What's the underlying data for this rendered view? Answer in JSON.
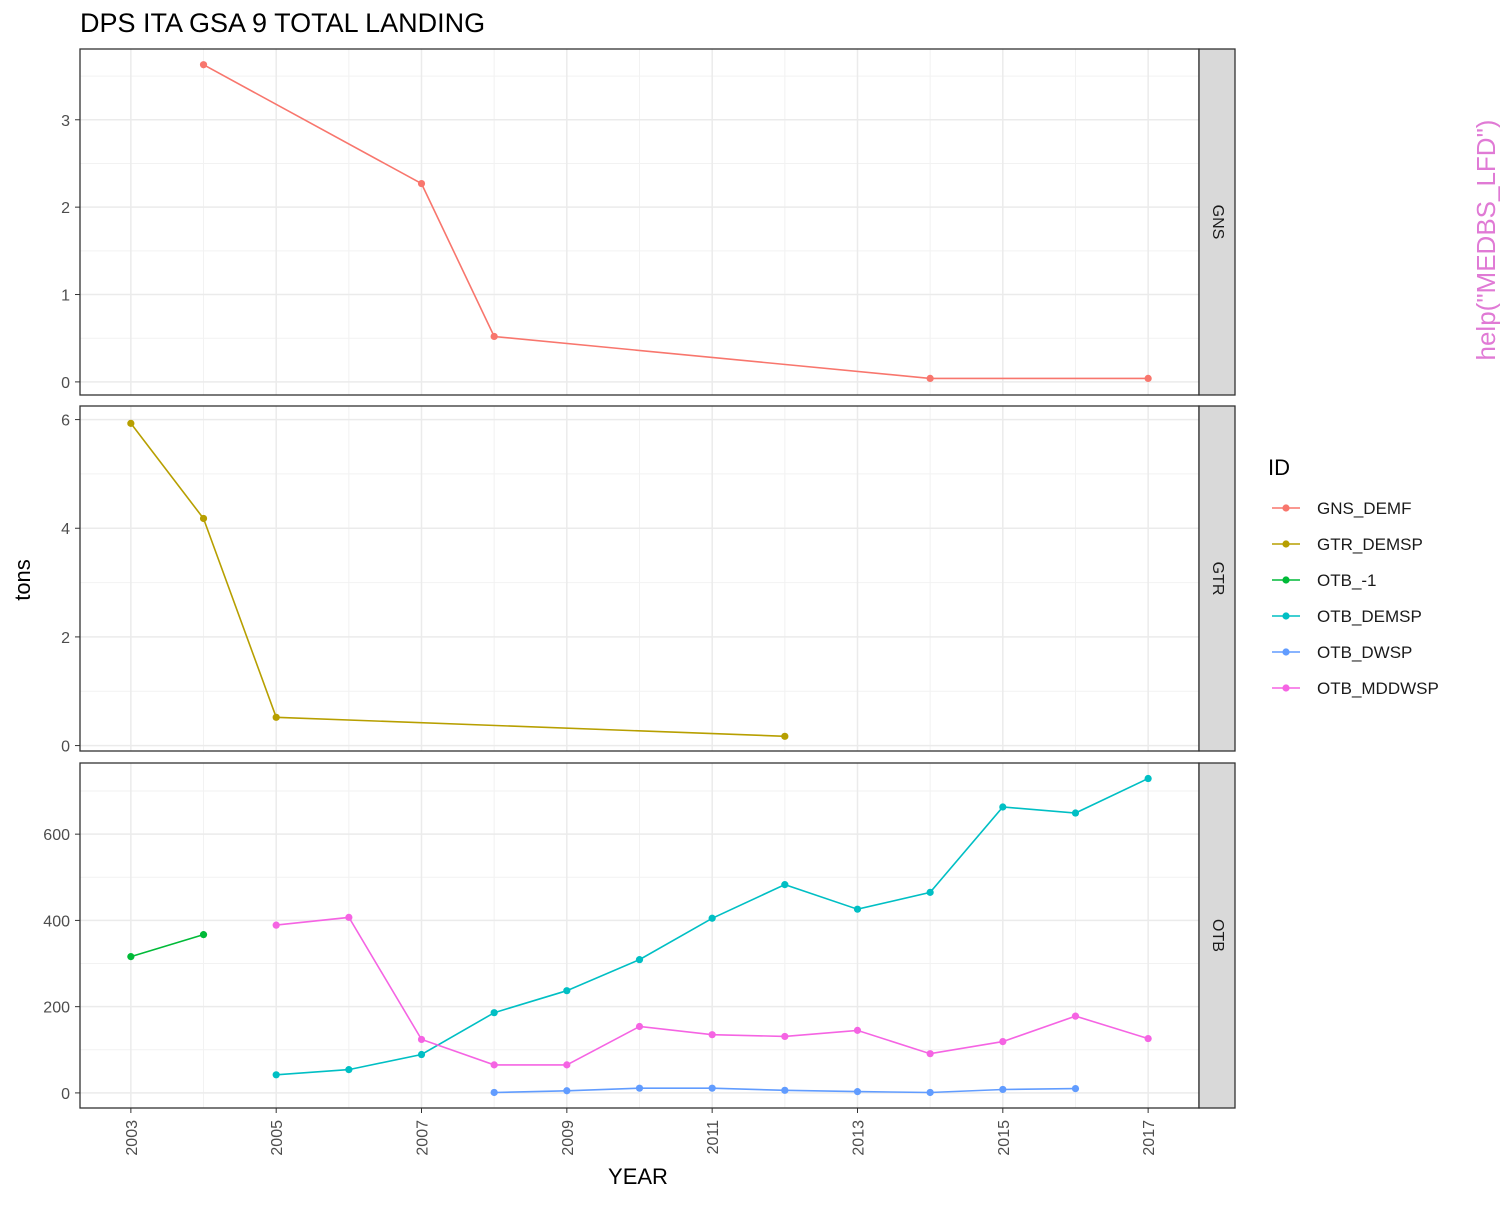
{
  "chart_data": {
    "type": "line",
    "title": "DPS ITA GSA 9 TOTAL LANDING",
    "xlabel": "YEAR",
    "ylabel": "tons",
    "watermark": "help(\"MEDBS_LFD\")",
    "legend_title": "ID",
    "legend_position": "right",
    "xlim": [
      2002.3,
      2017.7
    ],
    "x_ticks": [
      2003,
      2005,
      2007,
      2009,
      2011,
      2013,
      2015,
      2017
    ],
    "x_minor_ticks": [
      2004,
      2006,
      2008,
      2010,
      2012,
      2014,
      2016
    ],
    "colors": {
      "GNS_DEMF": "#F8766D",
      "GTR_DEMSP": "#B79F00",
      "OTB_-1": "#00BA38",
      "OTB_DEMSP": "#00BFC4",
      "OTB_DWSP": "#619CFF",
      "OTB_MDDWSP": "#F564E3"
    },
    "legend": [
      "GNS_DEMF",
      "GTR_DEMSP",
      "OTB_-1",
      "OTB_DEMSP",
      "OTB_DWSP",
      "OTB_MDDWSP"
    ],
    "panels": [
      {
        "strip": "GNS",
        "ylim": [
          -0.15,
          3.81
        ],
        "y_ticks": [
          0,
          1,
          2,
          3
        ],
        "y_minor_ticks": [
          0.5,
          1.5,
          2.5,
          3.5
        ],
        "series": [
          {
            "name": "GNS_DEMF",
            "x": [
              2004,
              2007,
              2008,
              2014,
              2017
            ],
            "y": [
              3.63,
              2.27,
              0.52,
              0.04,
              0.04
            ]
          }
        ]
      },
      {
        "strip": "GTR",
        "ylim": [
          -0.1,
          6.25
        ],
        "y_ticks": [
          0,
          2,
          4,
          6
        ],
        "y_minor_ticks": [
          1,
          3,
          5
        ],
        "series": [
          {
            "name": "GTR_DEMSP",
            "x": [
              2003,
              2004,
              2005,
              2012
            ],
            "y": [
              5.93,
              4.18,
              0.52,
              0.17
            ]
          }
        ]
      },
      {
        "strip": "OTB",
        "ylim": [
          -35,
          765
        ],
        "y_ticks": [
          0,
          200,
          400,
          600
        ],
        "y_minor_ticks": [
          100,
          300,
          500,
          700
        ],
        "series": [
          {
            "name": "OTB_-1",
            "x": [
              2003,
              2004
            ],
            "y": [
              316,
              367
            ]
          },
          {
            "name": "OTB_DEMSP",
            "x": [
              2005,
              2006,
              2007,
              2008,
              2009,
              2010,
              2011,
              2012,
              2013,
              2014,
              2015,
              2016,
              2017
            ],
            "y": [
              42,
              54,
              89,
              186,
              237,
              309,
              405,
              483,
              426,
              465,
              663,
              649,
              729
            ]
          },
          {
            "name": "OTB_DWSP",
            "x": [
              2008,
              2009,
              2010,
              2011,
              2012,
              2013,
              2014,
              2015,
              2016
            ],
            "y": [
              1,
              5,
              11,
              11,
              6,
              3,
              1,
              8,
              10
            ]
          },
          {
            "name": "OTB_MDDWSP",
            "x": [
              2005,
              2006,
              2007,
              2008,
              2009,
              2010,
              2011,
              2012,
              2013,
              2014,
              2015,
              2016,
              2017
            ],
            "y": [
              389,
              407,
              124,
              65,
              65,
              154,
              135,
              131,
              145,
              91,
              119,
              178,
              126
            ]
          }
        ]
      }
    ]
  }
}
